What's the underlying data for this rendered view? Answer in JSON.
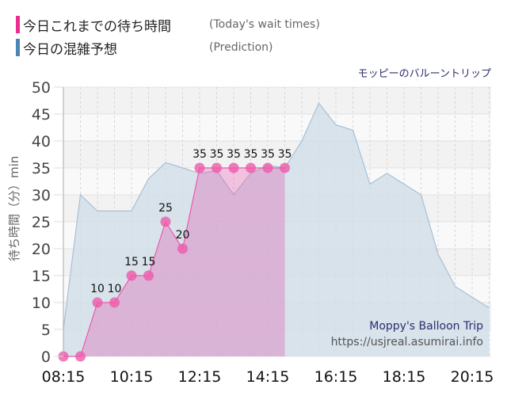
{
  "legend": {
    "today": {
      "jp": "今日これまでの待ち時間",
      "en": "(Today's wait times)",
      "color": "#ee2b8f"
    },
    "prediction": {
      "jp": "今日の混雑予想",
      "en": "(Prediction)",
      "color": "#4d84b6"
    }
  },
  "ride_title": "モッピーのバルーントリップ",
  "credit": {
    "name": "Moppy's Balloon Trip",
    "url": "https://usjreal.asumirai.info"
  },
  "chart_data": {
    "type": "area",
    "title": "モッピーのバルーントリップ",
    "xlabel": "",
    "ylabel": "待ち時間（分）min",
    "ylim": [
      0,
      50
    ],
    "yticks": [
      0,
      5,
      10,
      15,
      20,
      25,
      30,
      35,
      40,
      45,
      50
    ],
    "xticks": [
      "08:15",
      "10:15",
      "12:15",
      "14:15",
      "16:15",
      "18:15",
      "20:15"
    ],
    "grid": true,
    "legend_position": "top-left",
    "series": [
      {
        "name": "今日これまでの待ち時間 (Today's wait times)",
        "x": [
          "08:15",
          "08:45",
          "09:15",
          "09:45",
          "10:15",
          "10:45",
          "11:15",
          "11:45",
          "12:15",
          "12:45",
          "13:15",
          "13:45",
          "14:15",
          "14:45"
        ],
        "values": [
          0,
          0,
          10,
          10,
          15,
          15,
          25,
          20,
          35,
          35,
          35,
          35,
          35,
          35
        ]
      },
      {
        "name": "今日の混雑予想 (Prediction)",
        "x": [
          "08:15",
          "08:45",
          "09:15",
          "09:45",
          "10:15",
          "10:45",
          "11:15",
          "11:45",
          "12:15",
          "12:45",
          "13:15",
          "13:45",
          "14:15",
          "14:45",
          "15:15",
          "15:45",
          "16:15",
          "16:45",
          "17:15",
          "17:45",
          "18:15",
          "18:45",
          "19:15",
          "19:45",
          "20:15",
          "20:45"
        ],
        "values": [
          5,
          30,
          27,
          27,
          27,
          33,
          36,
          35,
          34,
          34.5,
          30,
          34,
          35.5,
          35,
          40,
          47,
          43,
          42,
          32,
          34,
          32,
          30,
          19,
          13,
          11,
          9
        ]
      }
    ]
  }
}
